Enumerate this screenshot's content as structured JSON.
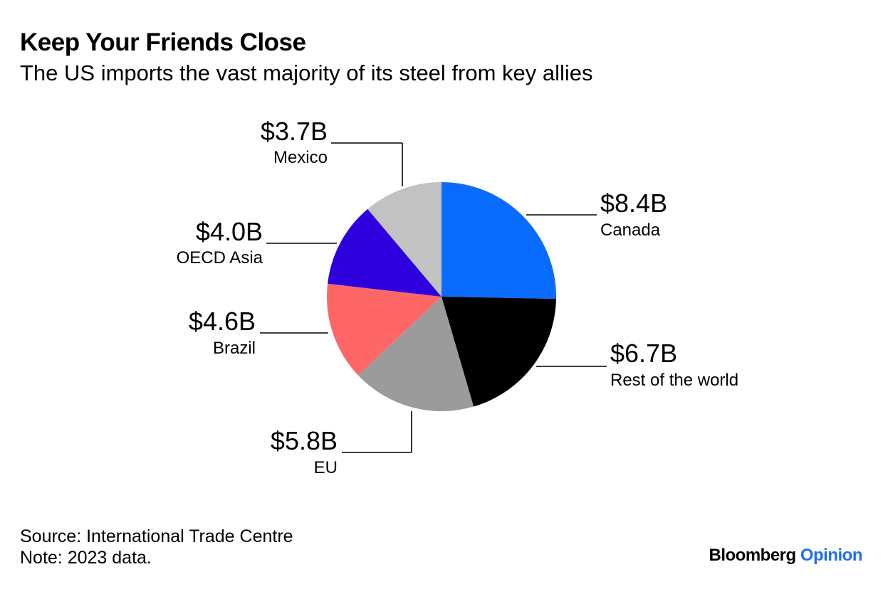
{
  "title": "Keep Your Friends Close",
  "subtitle": "The US imports the vast majority of its steel from key allies",
  "chart_data": {
    "type": "pie",
    "title": "Keep Your Friends Close",
    "subtitle": "The US imports the vast majority of its steel from key allies",
    "unit": "USD billions",
    "slices": [
      {
        "name": "Canada",
        "value": 8.4,
        "label": "$8.4B",
        "color": "#0a6cff"
      },
      {
        "name": "Rest of the world",
        "value": 6.7,
        "label": "$6.7B",
        "color": "#000000"
      },
      {
        "name": "EU",
        "value": 5.8,
        "label": "$5.8B",
        "color": "#9b9b9b"
      },
      {
        "name": "Brazil",
        "value": 4.6,
        "label": "$4.6B",
        "color": "#ff6666"
      },
      {
        "name": "OECD Asia",
        "value": 4.0,
        "label": "$4.0B",
        "color": "#2e00dd"
      },
      {
        "name": "Mexico",
        "value": 3.7,
        "label": "$3.7B",
        "color": "#c2c2c2"
      }
    ]
  },
  "footer": {
    "source": "Source: International Trade Centre",
    "note": "Note: 2023 data."
  },
  "brand": {
    "name": "Bloomberg",
    "product": "Opinion"
  }
}
